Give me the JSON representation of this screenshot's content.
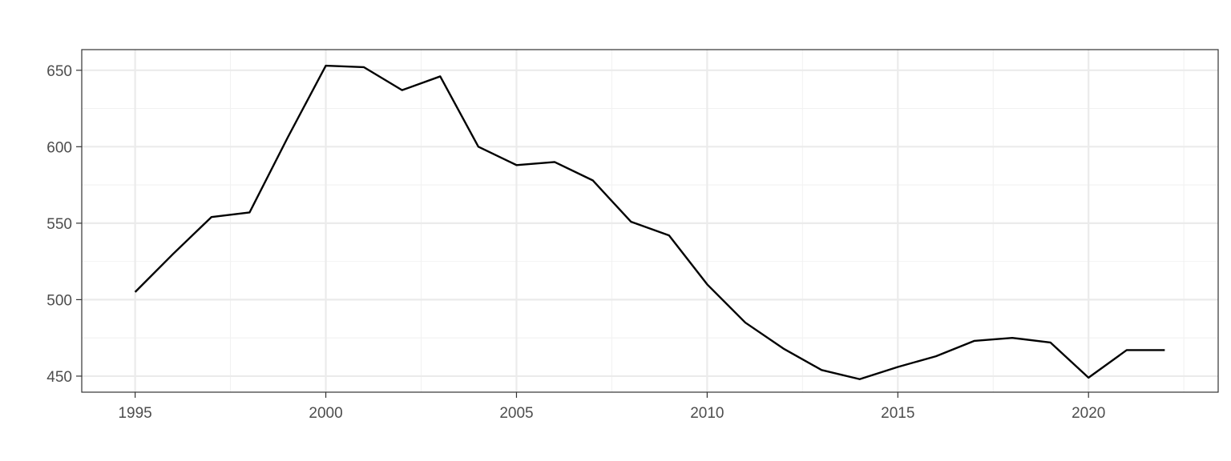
{
  "chart_data": {
    "type": "line",
    "title": "",
    "xlabel": "",
    "ylabel": "",
    "xlim": [
      1993.6,
      2023.4
    ],
    "ylim": [
      439.5,
      663.5
    ],
    "x_ticks": [
      1995,
      2000,
      2005,
      2010,
      2015,
      2020
    ],
    "y_ticks": [
      450,
      500,
      550,
      600,
      650
    ],
    "grid": true,
    "legend": "none",
    "series": [
      {
        "x": [
          1995,
          1996,
          1997,
          1998,
          1999,
          2000,
          2001,
          2002,
          2003,
          2004,
          2005,
          2006,
          2007,
          2008,
          2009,
          2010,
          2011,
          2012,
          2013,
          2014,
          2015,
          2016,
          2017,
          2018,
          2019,
          2020,
          2021,
          2022
        ],
        "values": [
          505,
          530,
          554,
          557,
          606,
          653,
          652,
          637,
          646,
          600,
          588,
          590,
          578,
          551,
          542,
          510,
          485,
          468,
          454,
          448,
          456,
          463,
          473,
          475,
          472,
          449,
          467,
          467
        ],
        "color": "#000000"
      }
    ],
    "colors": {
      "panel_border": "#333333",
      "grid_major": "#ebebeb",
      "grid_minor": "#f2f2f2",
      "tick": "#333333"
    }
  }
}
